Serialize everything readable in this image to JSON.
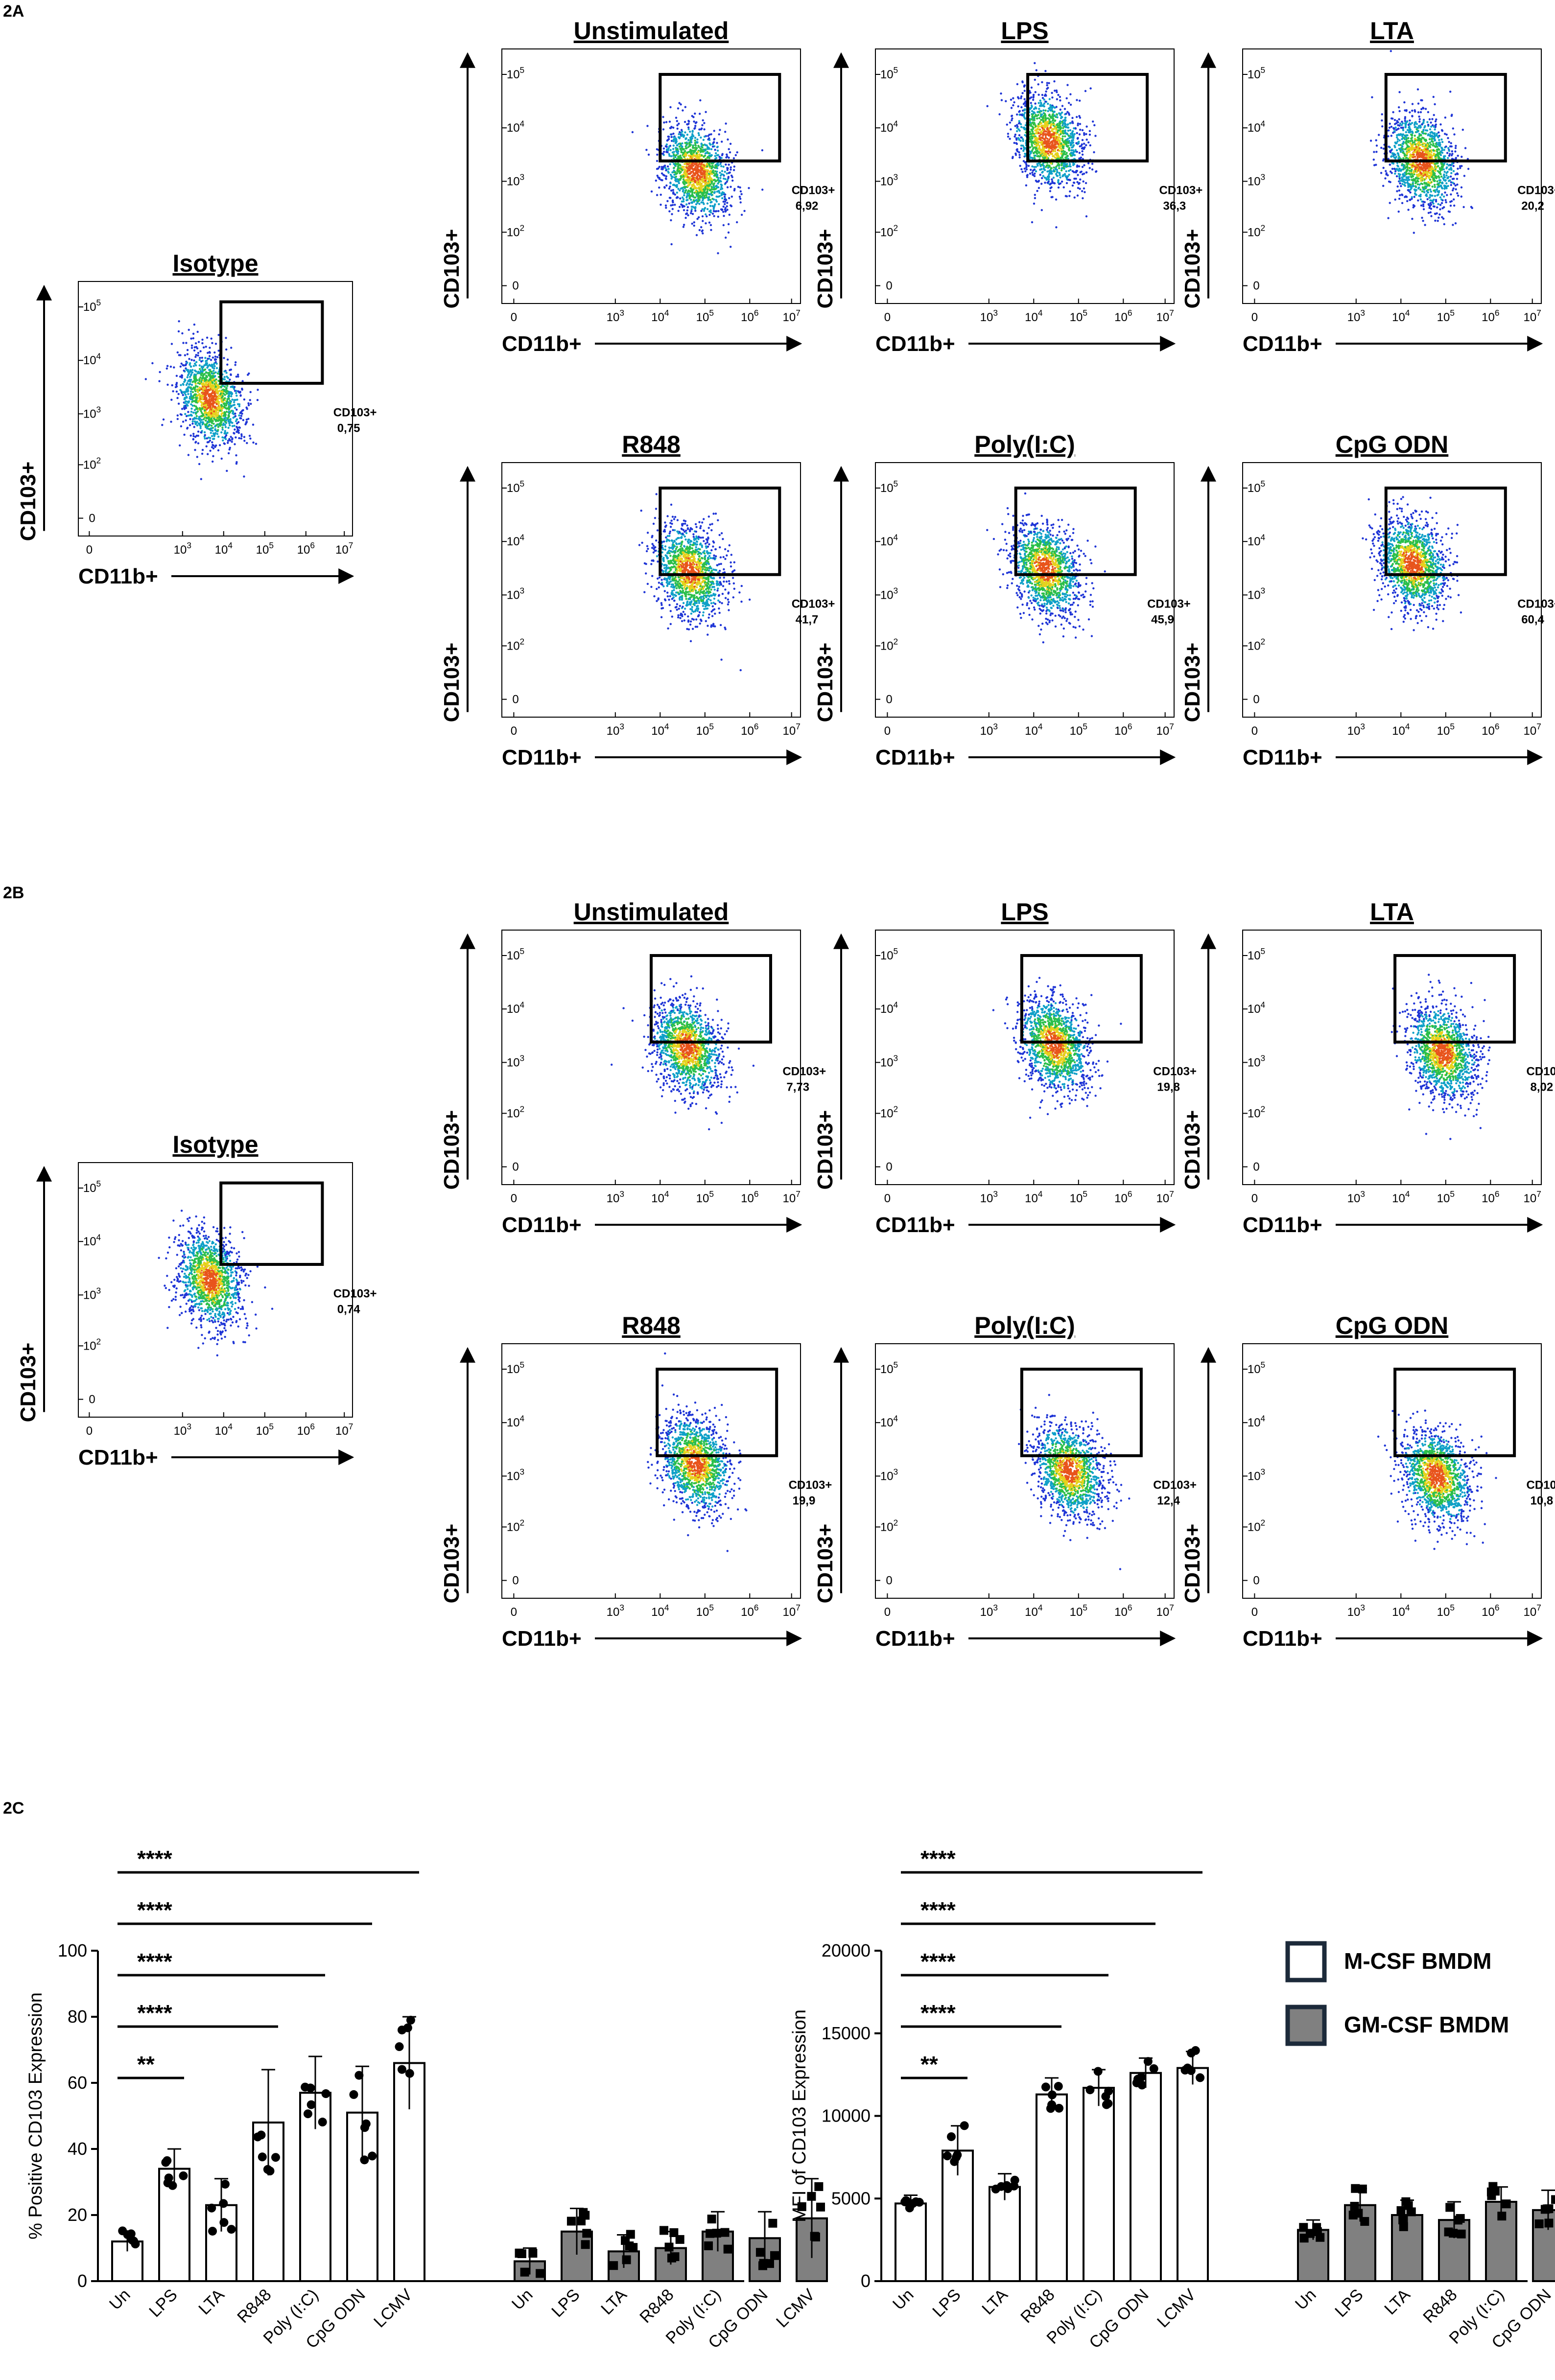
{
  "section_labels": {
    "a": "2A",
    "b": "2B",
    "c": "2C"
  },
  "axis_labels": {
    "x": "CD11b+",
    "y": "CD103+",
    "y_ticks": [
      {
        "base": "0",
        "exp": ""
      },
      {
        "base": "10",
        "exp": "2"
      },
      {
        "base": "10",
        "exp": "3"
      },
      {
        "base": "10",
        "exp": "4"
      },
      {
        "base": "10",
        "exp": "5"
      }
    ],
    "x_ticks": [
      {
        "base": "0",
        "exp": ""
      },
      {
        "base": "10",
        "exp": "3"
      },
      {
        "base": "10",
        "exp": "4"
      },
      {
        "base": "10",
        "exp": "5"
      },
      {
        "base": "10",
        "exp": "6"
      },
      {
        "base": "10",
        "exp": "7"
      }
    ]
  },
  "panel_2A": {
    "isotype": {
      "title": "Isotype",
      "gate_label": "CD103+",
      "gate_value": "0,75"
    },
    "plots": [
      {
        "title": "Unstimulated",
        "gate_label": "CD103+",
        "gate_value": "6,92"
      },
      {
        "title": "LPS",
        "gate_label": "CD103+",
        "gate_value": "36,3"
      },
      {
        "title": "LTA",
        "gate_label": "CD103+",
        "gate_value": "20,2"
      },
      {
        "title": "R848",
        "gate_label": "CD103+",
        "gate_value": "41,7"
      },
      {
        "title": "Poly(I:C)",
        "gate_label": "CD103+",
        "gate_value": "45,9"
      },
      {
        "title": "CpG ODN",
        "gate_label": "CD103+",
        "gate_value": "60,4"
      }
    ]
  },
  "panel_2B": {
    "isotype": {
      "title": "Isotype",
      "gate_label": "CD103+",
      "gate_value": "0,74"
    },
    "plots": [
      {
        "title": "Unstimulated",
        "gate_label": "CD103+",
        "gate_value": "7,73"
      },
      {
        "title": "LPS",
        "gate_label": "CD103+",
        "gate_value": "19,8"
      },
      {
        "title": "LTA",
        "gate_label": "CD103+",
        "gate_value": "8,02"
      },
      {
        "title": "R848",
        "gate_label": "CD103+",
        "gate_value": "19,9"
      },
      {
        "title": "Poly(I:C)",
        "gate_label": "CD103+",
        "gate_value": "12,4"
      },
      {
        "title": "CpG ODN",
        "gate_label": "CD103+",
        "gate_value": "10,8"
      }
    ]
  },
  "legend": {
    "items": [
      {
        "label": "M-CSF BMDM",
        "color": "#ffffff"
      },
      {
        "label": "GM-CSF BMDM",
        "color": "#808080"
      }
    ]
  },
  "chart_data": [
    {
      "type": "bar",
      "ylabel": "% Positive CD103 Expression",
      "ylim": [
        0,
        100
      ],
      "yticks": [
        0,
        20,
        40,
        60,
        80,
        100
      ],
      "categories": [
        "Un",
        "LPS",
        "LTA",
        "R848",
        "Poly (I:C)",
        "CpG ODN",
        "LCMV"
      ],
      "series": [
        {
          "name": "M-CSF BMDM",
          "color": "#ffffff",
          "marker": "circle",
          "values": [
            12,
            34,
            23,
            48,
            57,
            51,
            66
          ],
          "errors": [
            3,
            6,
            8,
            16,
            11,
            14,
            14
          ]
        },
        {
          "name": "GM-CSF BMDM",
          "color": "#808080",
          "marker": "square",
          "values": [
            6,
            15,
            9,
            10,
            15,
            13,
            19
          ],
          "errors": [
            4,
            7,
            5,
            5,
            6,
            8,
            12
          ]
        }
      ],
      "significance": [
        "**",
        "****",
        "****",
        "****",
        "****"
      ]
    },
    {
      "type": "bar",
      "ylabel": "MFI of CD103 Expression",
      "ylim": [
        0,
        20000
      ],
      "yticks": [
        0,
        5000,
        10000,
        15000,
        20000
      ],
      "categories": [
        "Un",
        "LPS",
        "LTA",
        "R848",
        "Poly (I:C)",
        "CpG ODN",
        "LCMV"
      ],
      "series": [
        {
          "name": "M-CSF BMDM",
          "color": "#ffffff",
          "marker": "circle",
          "values": [
            4700,
            7900,
            5700,
            11300,
            11700,
            12600,
            12900
          ],
          "errors": [
            500,
            1500,
            800,
            1000,
            1100,
            900,
            1000
          ]
        },
        {
          "name": "GM-CSF BMDM",
          "color": "#808080",
          "marker": "square",
          "values": [
            3100,
            4600,
            4000,
            3700,
            4800,
            4300,
            5100
          ],
          "errors": [
            600,
            1000,
            900,
            1100,
            900,
            1200,
            1600
          ]
        }
      ],
      "significance": [
        "**",
        "****",
        "****",
        "****",
        "****"
      ]
    }
  ]
}
